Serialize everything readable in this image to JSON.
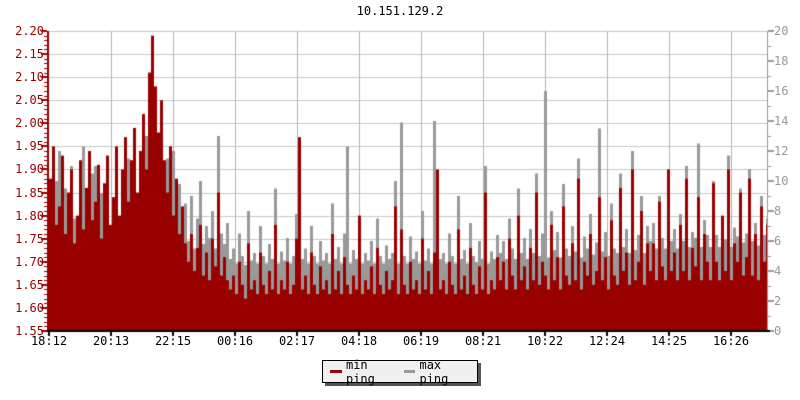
{
  "title": "10.151.129.2",
  "colors": {
    "background": "#ffffff",
    "min_ping": "#990000",
    "max_ping": "#999999",
    "grid_h": "#c9c9c9",
    "grid_v": "#b3b3b3",
    "left_axis": "#990000",
    "right_axis": "#999999",
    "bottom_axis": "#000000",
    "legend_bg": "#f0f0f0",
    "legend_shadow": "#555555"
  },
  "legend": {
    "items": [
      {
        "label": "min ping",
        "color": "#990000"
      },
      {
        "label": "max ping",
        "color": "#999999"
      }
    ]
  },
  "chart_data": {
    "type": "area",
    "title": "10.151.129.2",
    "grid": true,
    "legend_position": "bottom-center",
    "x_tick_labels": [
      "18:12",
      "20:13",
      "22:15",
      "00:16",
      "02:17",
      "04:18",
      "06:19",
      "08:21",
      "10:22",
      "12:24",
      "14:25",
      "16:26"
    ],
    "left_axis": {
      "range": [
        1.55,
        2.2
      ],
      "tick_step": 0.05,
      "minor_tick_step": 0.01,
      "tick_labels": [
        "2.20",
        "2.15",
        "2.10",
        "2.05",
        "2.00",
        "1.95",
        "1.90",
        "1.85",
        "1.80",
        "1.75",
        "1.70",
        "1.65",
        "1.60",
        "1.55"
      ],
      "color": "#990000"
    },
    "right_axis": {
      "range": [
        0,
        20
      ],
      "tick_step": 2,
      "minor_tick_step": 1,
      "tick_labels": [
        "20",
        "18",
        "16",
        "14",
        "12",
        "10",
        "8",
        "6",
        "4",
        "2",
        "0"
      ],
      "color": "#999999"
    },
    "series": [
      {
        "name": "min ping",
        "axis": "left",
        "style": "filled-area",
        "color": "#990000",
        "values": [
          1.88,
          1.95,
          1.78,
          1.82,
          1.93,
          1.76,
          1.85,
          1.9,
          1.74,
          1.8,
          1.92,
          1.77,
          1.86,
          1.94,
          1.79,
          1.83,
          1.91,
          1.75,
          1.87,
          1.93,
          1.78,
          1.84,
          1.95,
          1.8,
          1.9,
          1.97,
          1.83,
          1.92,
          1.99,
          1.85,
          1.94,
          2.02,
          1.9,
          2.11,
          2.19,
          2.08,
          1.98,
          2.05,
          1.92,
          1.85,
          1.95,
          1.8,
          1.88,
          1.76,
          1.82,
          1.74,
          1.7,
          1.76,
          1.68,
          1.73,
          1.78,
          1.67,
          1.72,
          1.66,
          1.75,
          1.69,
          1.85,
          1.67,
          1.71,
          1.66,
          1.64,
          1.67,
          1.63,
          1.7,
          1.65,
          1.62,
          1.74,
          1.64,
          1.66,
          1.63,
          1.72,
          1.65,
          1.63,
          1.68,
          1.64,
          1.78,
          1.63,
          1.66,
          1.64,
          1.7,
          1.63,
          1.65,
          1.75,
          1.97,
          1.64,
          1.67,
          1.63,
          1.72,
          1.65,
          1.63,
          1.69,
          1.64,
          1.66,
          1.63,
          1.76,
          1.64,
          1.68,
          1.63,
          1.71,
          1.65,
          1.63,
          1.67,
          1.64,
          1.8,
          1.63,
          1.66,
          1.64,
          1.69,
          1.63,
          1.73,
          1.65,
          1.63,
          1.68,
          1.64,
          1.66,
          1.82,
          1.63,
          1.77,
          1.65,
          1.63,
          1.7,
          1.64,
          1.66,
          1.63,
          1.75,
          1.64,
          1.68,
          1.63,
          1.72,
          1.9,
          1.64,
          1.66,
          1.63,
          1.7,
          1.65,
          1.63,
          1.77,
          1.64,
          1.67,
          1.63,
          1.73,
          1.65,
          1.63,
          1.69,
          1.64,
          1.85,
          1.63,
          1.66,
          1.64,
          1.71,
          1.66,
          1.7,
          1.64,
          1.75,
          1.67,
          1.64,
          1.8,
          1.66,
          1.69,
          1.64,
          1.73,
          1.66,
          1.85,
          1.65,
          1.7,
          1.67,
          1.64,
          1.78,
          1.66,
          1.71,
          1.64,
          1.82,
          1.67,
          1.65,
          1.74,
          1.66,
          1.88,
          1.64,
          1.7,
          1.67,
          1.76,
          1.65,
          1.68,
          1.84,
          1.66,
          1.71,
          1.64,
          1.79,
          1.67,
          1.65,
          1.86,
          1.68,
          1.72,
          1.65,
          1.9,
          1.66,
          1.7,
          1.81,
          1.65,
          1.74,
          1.68,
          1.74,
          1.66,
          1.83,
          1.69,
          1.66,
          1.9,
          1.68,
          1.72,
          1.66,
          1.78,
          1.68,
          1.88,
          1.66,
          1.73,
          1.69,
          1.84,
          1.66,
          1.76,
          1.7,
          1.66,
          1.87,
          1.7,
          1.66,
          1.8,
          1.68,
          1.9,
          1.66,
          1.74,
          1.7,
          1.85,
          1.67,
          1.71,
          1.88,
          1.67,
          1.76,
          1.66,
          1.82,
          1.7,
          1.78
        ]
      },
      {
        "name": "max ping",
        "axis": "right",
        "style": "filled-area",
        "color": "#999999",
        "values": [
          8.5,
          6.2,
          10.0,
          12.0,
          7.0,
          9.5,
          6.5,
          11.0,
          7.5,
          5.8,
          9.0,
          12.3,
          6.8,
          8.0,
          10.5,
          11.0,
          6.0,
          9.2,
          7.8,
          10.0,
          6.5,
          8.8,
          9.8,
          7.5,
          10.2,
          8.0,
          11.5,
          9.0,
          12.0,
          8.5,
          10.5,
          9.5,
          13.0,
          11.0,
          17.3,
          12.5,
          10.0,
          13.5,
          9.0,
          11.5,
          8.0,
          12.0,
          7.5,
          9.8,
          7.0,
          8.5,
          6.0,
          9.0,
          5.5,
          7.5,
          10.0,
          5.8,
          7.0,
          6.2,
          8.0,
          5.5,
          13.0,
          6.5,
          5.8,
          7.2,
          4.8,
          5.5,
          4.5,
          6.5,
          5.0,
          4.4,
          8.0,
          4.7,
          5.2,
          4.5,
          7.0,
          5.0,
          4.5,
          5.8,
          4.8,
          9.5,
          4.5,
          5.3,
          4.7,
          6.2,
          4.5,
          5.0,
          7.8,
          7.5,
          4.8,
          5.5,
          4.5,
          7.0,
          5.0,
          4.5,
          6.0,
          4.7,
          5.2,
          4.5,
          8.5,
          4.8,
          5.6,
          4.5,
          6.5,
          12.3,
          4.5,
          5.4,
          4.8,
          6.2,
          4.5,
          5.2,
          4.7,
          6.0,
          4.5,
          7.5,
          5.0,
          4.5,
          5.7,
          4.8,
          5.2,
          10.0,
          4.5,
          13.9,
          5.0,
          4.5,
          6.3,
          4.8,
          5.3,
          4.5,
          8.0,
          4.7,
          5.5,
          4.5,
          14.0,
          6.8,
          4.8,
          5.2,
          4.5,
          6.5,
          5.0,
          4.5,
          9.0,
          4.8,
          5.4,
          4.5,
          7.2,
          5.0,
          4.6,
          6.0,
          4.8,
          11.0,
          4.5,
          5.3,
          4.8,
          6.4,
          5.2,
          6.0,
          4.8,
          7.5,
          5.5,
          4.8,
          9.5,
          5.2,
          6.2,
          4.8,
          6.8,
          5.2,
          10.5,
          5.0,
          6.5,
          16.0,
          4.9,
          8.0,
          5.4,
          6.6,
          4.9,
          9.8,
          5.5,
          5.0,
          7.0,
          5.3,
          11.5,
          4.9,
          6.3,
          5.5,
          7.8,
          5.1,
          5.9,
          13.5,
          5.3,
          6.6,
          5.0,
          8.5,
          5.5,
          5.2,
          10.5,
          5.6,
          6.8,
          5.2,
          12.0,
          5.4,
          6.4,
          9.0,
          5.2,
          7.0,
          6.0,
          7.2,
          5.5,
          9.0,
          6.2,
          5.5,
          10.5,
          6.0,
          6.8,
          5.5,
          7.8,
          6.0,
          11.0,
          5.6,
          6.6,
          6.2,
          12.5,
          5.6,
          7.4,
          6.4,
          5.6,
          10.0,
          6.4,
          5.6,
          7.6,
          6.1,
          11.7,
          5.6,
          6.9,
          6.3,
          9.5,
          5.9,
          6.5,
          10.8,
          6.0,
          7.2,
          5.7,
          9.0,
          6.4,
          7.5
        ]
      }
    ]
  }
}
